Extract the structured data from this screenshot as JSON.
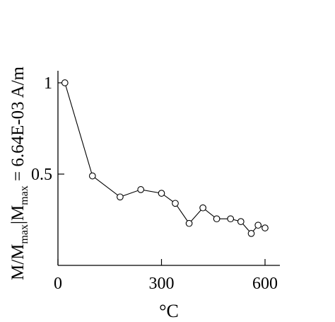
{
  "chart_data": {
    "type": "line",
    "title": "",
    "xlabel": "°C",
    "ylabel": {
      "prefix": "M/M",
      "sub1": "max",
      "middle": "|M",
      "sub2": "max",
      "suffix": " = 6.64E-03 A/m"
    },
    "xlim": [
      0,
      620
    ],
    "ylim": [
      0,
      1.05
    ],
    "x_ticks": [
      {
        "value": 0,
        "label": "0"
      },
      {
        "value": 300,
        "label": "300"
      },
      {
        "value": 600,
        "label": "600"
      }
    ],
    "y_ticks": [
      {
        "value": 0.5,
        "label": "0.5"
      },
      {
        "value": 1,
        "label": "1"
      }
    ],
    "grid": false,
    "marker": "open-circle",
    "series": [
      {
        "x": [
          20,
          100,
          180,
          240,
          300,
          340,
          380,
          420,
          460,
          500,
          530,
          560,
          580,
          600
        ],
        "y": [
          1.0,
          0.49,
          0.375,
          0.415,
          0.395,
          0.34,
          0.23,
          0.315,
          0.255,
          0.255,
          0.24,
          0.175,
          0.22,
          0.205
        ]
      }
    ]
  }
}
